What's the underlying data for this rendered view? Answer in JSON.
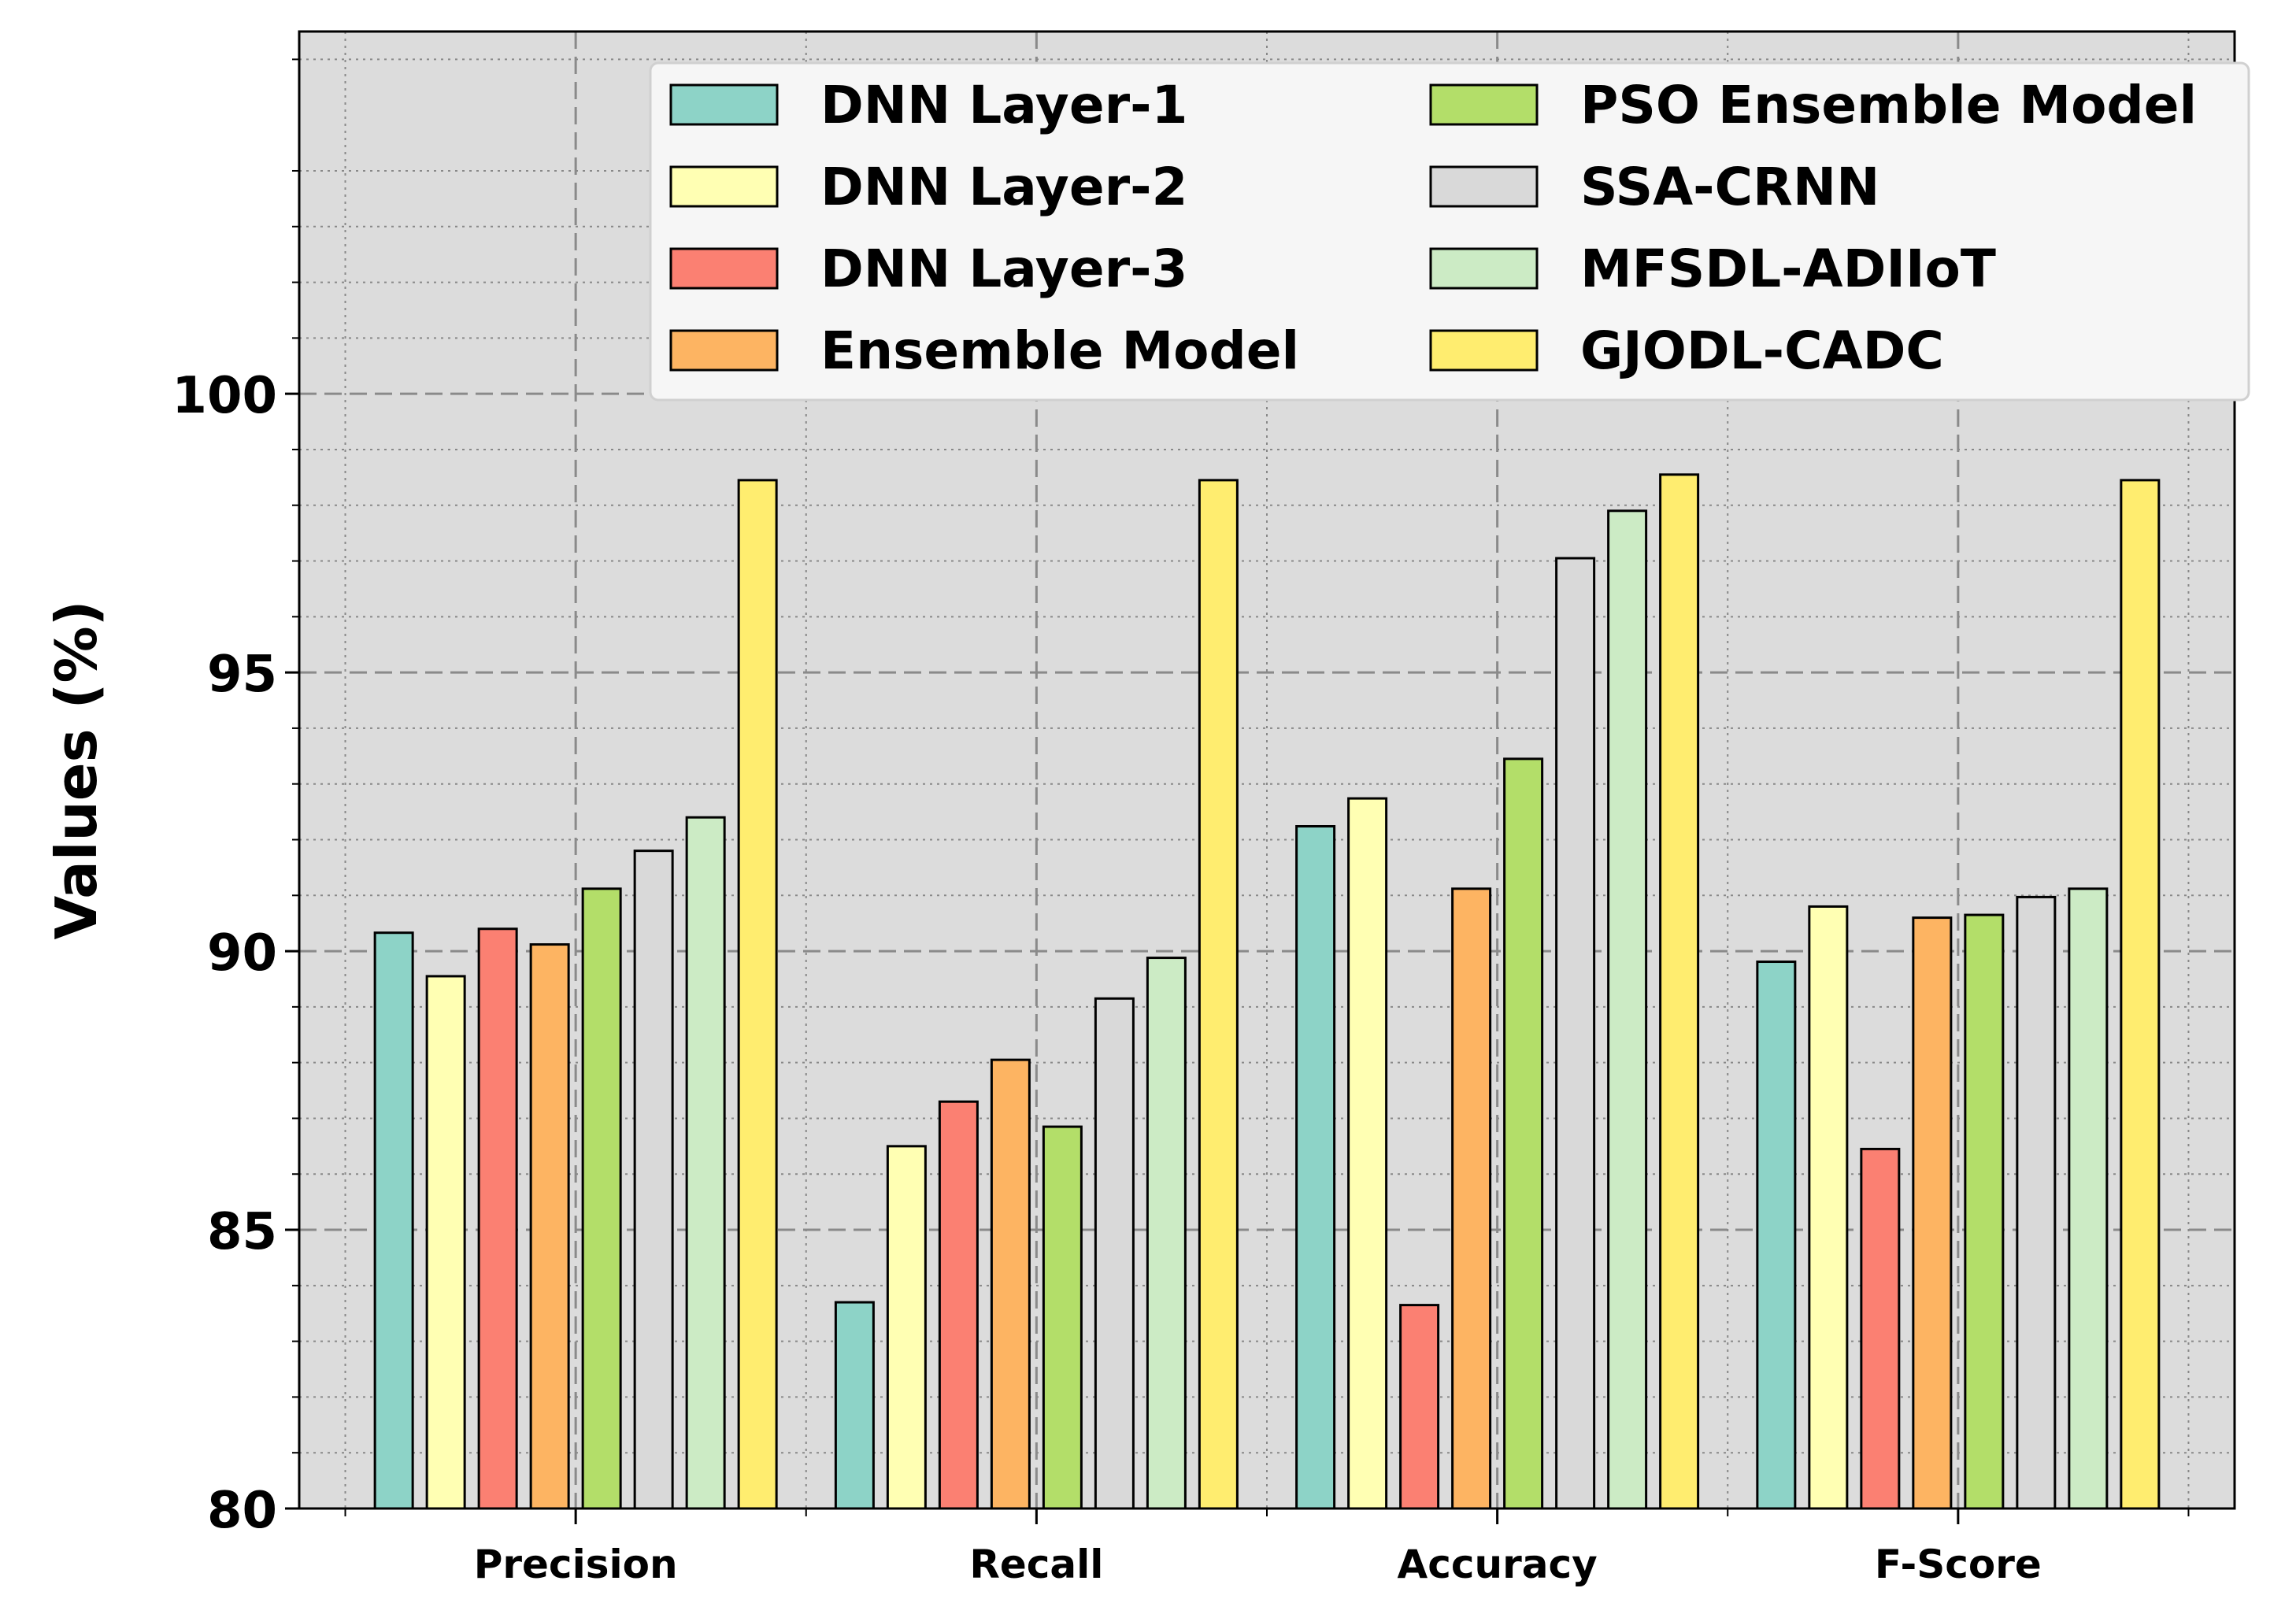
{
  "chart_data": {
    "type": "bar",
    "title": "",
    "xlabel": "",
    "ylabel": "Values (%)",
    "ylim": [
      80,
      106.5
    ],
    "yticks": [
      80,
      85,
      90,
      95,
      100
    ],
    "categories": [
      "Precision",
      "Recall",
      "Accuracy",
      "F-Score"
    ],
    "series": [
      {
        "name": "DNN Layer-1",
        "color": "#8dd3c7",
        "values": [
          90.33,
          83.7,
          92.24,
          89.81
        ]
      },
      {
        "name": "DNN Layer-2",
        "color": "#ffffb3",
        "values": [
          89.55,
          86.5,
          92.74,
          90.8
        ]
      },
      {
        "name": "DNN Layer-3",
        "color": "#fb8072",
        "values": [
          90.4,
          87.3,
          83.65,
          86.45
        ]
      },
      {
        "name": "Ensemble Model",
        "color": "#fdb462",
        "values": [
          90.12,
          88.05,
          91.12,
          90.6
        ]
      },
      {
        "name": "PSO Ensemble Model",
        "color": "#b3de69",
        "values": [
          91.12,
          86.85,
          93.45,
          90.65
        ]
      },
      {
        "name": "SSA-CRNN",
        "color": "#d9d9d9",
        "values": [
          91.8,
          89.15,
          97.05,
          90.97
        ]
      },
      {
        "name": "MFSDL-ADIIoT",
        "color": "#ccebc5",
        "values": [
          92.4,
          89.88,
          97.9,
          91.12
        ]
      },
      {
        "name": "GJODL-CADC",
        "color": "#ffed6f",
        "values": [
          98.45,
          98.45,
          98.55,
          98.45
        ]
      }
    ],
    "legend": "upper-right, 2 columns",
    "grid": true
  }
}
